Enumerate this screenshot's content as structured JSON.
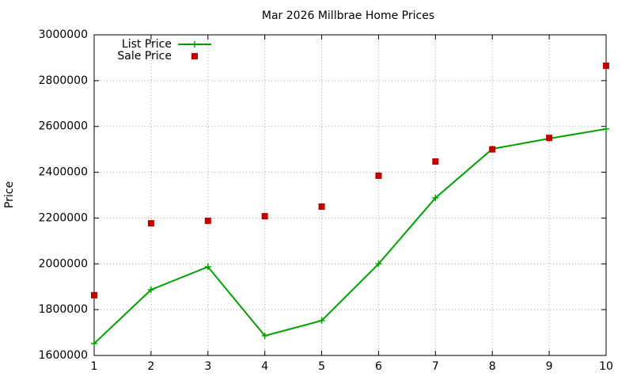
{
  "chart_data": {
    "type": "line",
    "title": "Mar 2026 Millbrae Home Prices",
    "y_label": "Price",
    "x": [
      1,
      2,
      3,
      4,
      5,
      6,
      7,
      8,
      9,
      10
    ],
    "series": [
      {
        "name": "List Price",
        "color": "#00a000",
        "style": "linespoints",
        "values": [
          1652000,
          1887000,
          1987000,
          1686000,
          1752000,
          2000000,
          2288000,
          2502000,
          2547000,
          2589000
        ]
      },
      {
        "name": "Sale Price",
        "color": "#c00000",
        "style": "points",
        "values": [
          1863000,
          2177000,
          2188000,
          2208000,
          2250000,
          2385000,
          2447000,
          2500000,
          2550000,
          2865000
        ]
      }
    ],
    "xlim": [
      1,
      10
    ],
    "xticks": [
      1,
      2,
      3,
      4,
      5,
      6,
      7,
      8,
      9,
      10
    ],
    "ylim": [
      1600000,
      3000000
    ],
    "yticks": [
      1600000,
      1800000,
      2000000,
      2200000,
      2400000,
      2600000,
      2800000,
      3000000
    ],
    "grid": true,
    "legend": "top-left"
  }
}
